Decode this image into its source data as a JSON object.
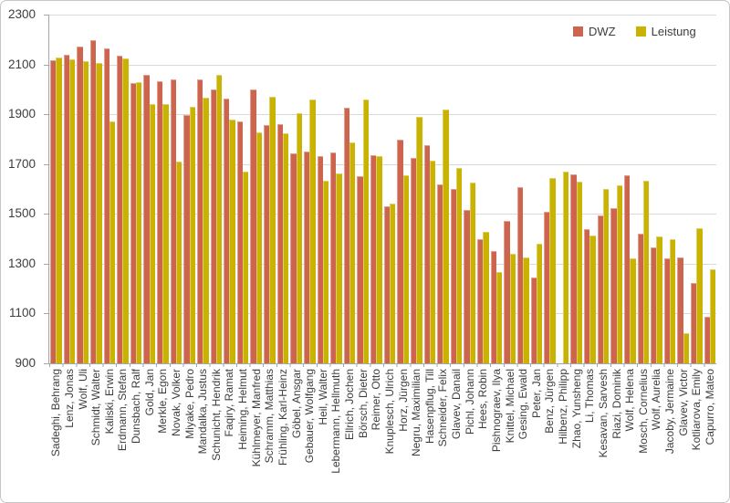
{
  "chart_data": {
    "type": "bar",
    "title": "",
    "xlabel": "",
    "ylabel": "",
    "ylim": [
      900,
      2300
    ],
    "yticks": [
      900,
      1100,
      1300,
      1500,
      1700,
      1900,
      2100,
      2300
    ],
    "grid": true,
    "legend_position": "top-right",
    "categories": [
      "Sadeghi, Behrang",
      "Lenz, Jonas",
      "Wolf, Uli",
      "Schmidt, Walter",
      "Kaliski, Erwin",
      "Erdmann, Stefan",
      "Dunsbach, Ralf",
      "Gold, Jan",
      "Merkle, Egon",
      "Novak, Volker",
      "Miyake, Pedro",
      "Mandalka, Justus",
      "Schunicht, Hendrik",
      "Faqiry, Ramat",
      "Heiming, Helmut",
      "Kühlmeyer, Manfred",
      "Schramm, Matthias",
      "Frühling, Karl-Heinz",
      "Göbel, Ansgar",
      "Gebauer, Wolfgang",
      "Heil, Walter",
      "Lebermann, Hellmuth",
      "Ellrich, Jochen",
      "Börsch, Dieter",
      "Reimer, Otto",
      "Knuplesch, Ulrich",
      "Horz, Jürgen",
      "Negru, Maximilian",
      "Hasenpflug, Till",
      "Schneider, Felix",
      "Glavev, Danail",
      "Pichl, Johann",
      "Hees, Robin",
      "Pishnograev, Ilya",
      "Knittel, Michael",
      "Gesing, Ewald",
      "Peter, Jan",
      "Benz, Jürgen",
      "Hilbenz, Philipp",
      "Zhao, Yunsheng",
      "Li, Thomas",
      "Kesavan, Sarvesh",
      "Riazi, Dominik",
      "Wolf, Helena",
      "Mosch, Cornelius",
      "Wolf, Aurelia",
      "Jacoby, Jermaine",
      "Glavev, Victor",
      "Kotliarova, Emily",
      "Capurro, Mateo"
    ],
    "series": [
      {
        "name": "DWZ",
        "color": "#cd644e",
        "values": [
          2118,
          2137,
          2172,
          2196,
          2165,
          2135,
          2024,
          2058,
          2033,
          2040,
          1898,
          2040,
          2000,
          1962,
          1872,
          2000,
          1857,
          1860,
          1742,
          1750,
          1733,
          1746,
          1927,
          1652,
          1736,
          1530,
          1797,
          1724,
          1775,
          1619,
          1600,
          1516,
          1400,
          1350,
          1471,
          1609,
          1243,
          1508,
          null,
          1658,
          1437,
          1492,
          1522,
          1655,
          1421,
          1367,
          1322,
          1324,
          1224,
          1087
        ]
      },
      {
        "name": "Leistung",
        "color": "#c9b200",
        "values": [
          2128,
          2122,
          2112,
          2105,
          1870,
          2123,
          2030,
          1942,
          1942,
          1709,
          1930,
          1965,
          2058,
          1880,
          1670,
          1826,
          1972,
          1822,
          1906,
          1960,
          1633,
          1664,
          1787,
          1958,
          1733,
          1542,
          1654,
          1888,
          1712,
          1918,
          1683,
          1625,
          1428,
          1266,
          1341,
          1327,
          1379,
          1645,
          1670,
          1630,
          1414,
          1601,
          1613,
          1322,
          1633,
          1410,
          1397,
          1021,
          1443,
          1279
        ]
      }
    ]
  },
  "legend": {
    "items": [
      {
        "label": "DWZ",
        "color": "#cd644e"
      },
      {
        "label": "Leistung",
        "color": "#c9b200"
      }
    ]
  },
  "colors": {
    "dwz": "#cd644e",
    "leistung": "#c9b200",
    "gridline": "#d9d9d9",
    "axis": "#a6a6a6",
    "text": "#3d3d3d"
  }
}
